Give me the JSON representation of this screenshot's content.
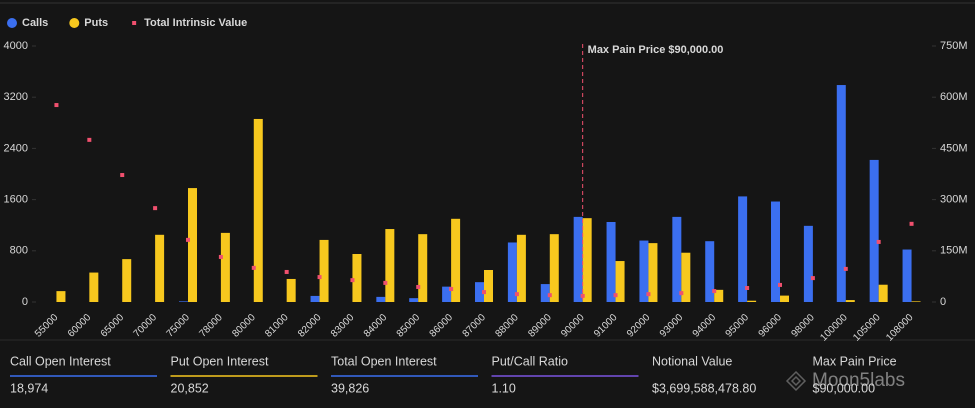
{
  "chart_data": {
    "type": "bar",
    "categories": [
      "55000",
      "60000",
      "65000",
      "70000",
      "75000",
      "78000",
      "80000",
      "81000",
      "82000",
      "83000",
      "84000",
      "85000",
      "86000",
      "87000",
      "88000",
      "89000",
      "90000",
      "91000",
      "92000",
      "93000",
      "94000",
      "95000",
      "96000",
      "98000",
      "100000",
      "105000",
      "108000"
    ],
    "series": [
      {
        "name": "Calls",
        "color": "#3b6ff0",
        "values": [
          0,
          0,
          0,
          0,
          10,
          0,
          0,
          0,
          95,
          0,
          80,
          60,
          240,
          310,
          930,
          280,
          1330,
          1250,
          960,
          1330,
          950,
          1650,
          1570,
          1190,
          3390,
          2220,
          820
        ]
      },
      {
        "name": "Puts",
        "color": "#f7c81e",
        "values": [
          170,
          460,
          670,
          1050,
          1780,
          1080,
          2860,
          360,
          970,
          750,
          1140,
          1060,
          1300,
          500,
          1050,
          1060,
          1310,
          640,
          920,
          770,
          190,
          20,
          100,
          0,
          30,
          270,
          10
        ]
      },
      {
        "name": "Total Intrinsic Value",
        "color": "#f0506e",
        "type": "scatter",
        "axis": "y2",
        "values": [
          577000000,
          475000000,
          372000000,
          275000000,
          182000000,
          132000000,
          100000000,
          88000000,
          73000000,
          64000000,
          56000000,
          44000000,
          38000000,
          29000000,
          23000000,
          20000000,
          18000000,
          20000000,
          23000000,
          26000000,
          32000000,
          41000000,
          50000000,
          70000000,
          97000000,
          176000000,
          229000000
        ]
      }
    ],
    "ylim": [
      0,
      4000
    ],
    "yticks": [
      0,
      800,
      1600,
      2400,
      3200,
      4000
    ],
    "y2lim": [
      0,
      750000000
    ],
    "y2ticks": [
      0,
      {
        "value": 150000000,
        "label": "150M"
      },
      {
        "value": 300000000,
        "label": "300M"
      },
      {
        "value": 450000000,
        "label": "450M"
      },
      {
        "value": 600000000,
        "label": "600M"
      },
      {
        "value": 750000000,
        "label": "750M"
      }
    ],
    "annotation": {
      "text": "Max Pain Price $90,000.00",
      "x": "90000",
      "color": "#f0506e"
    },
    "legend": "top-left"
  },
  "stats": [
    {
      "label": "Call Open Interest",
      "value": "18,974",
      "color": "#3b6ff0"
    },
    {
      "label": "Put Open Interest",
      "value": "20,852",
      "color": "#f7c81e"
    },
    {
      "label": "Total Open Interest",
      "value": "39,826",
      "color": "#3b6ff0"
    },
    {
      "label": "Put/Call Ratio",
      "value": "1.10",
      "color": "#7b55e0"
    },
    {
      "label": "Notional Value",
      "value": "$3,699,588,478.80"
    },
    {
      "label": "Max Pain Price",
      "value": "$90,000.00"
    }
  ],
  "watermark": "Moon5labs"
}
